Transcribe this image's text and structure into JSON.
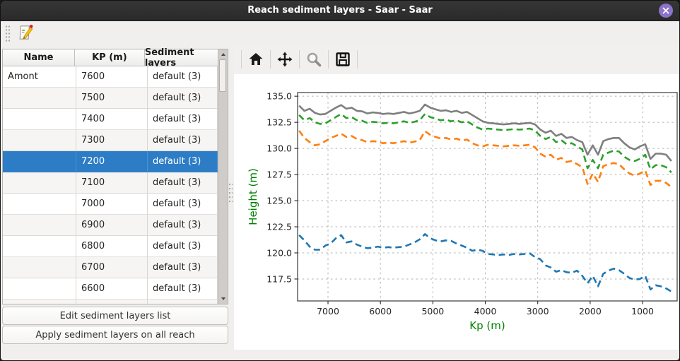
{
  "window": {
    "title": "Reach sediment layers - Saar - Saar"
  },
  "colors": {
    "selection_blue": "#2d7dc6",
    "close_button_purple": "#8b73c9",
    "axis_label_green": "#008000"
  },
  "toolbar": {
    "icons": [
      "edit-sediment-layers"
    ]
  },
  "table": {
    "headers": [
      "Name",
      "KP (m)",
      "Sediment layers"
    ],
    "selected_index": 4,
    "rows": [
      {
        "name": "Amont",
        "kp": "7600",
        "layers": "default (3)"
      },
      {
        "name": "",
        "kp": "7500",
        "layers": "default (3)"
      },
      {
        "name": "",
        "kp": "7400",
        "layers": "default (3)"
      },
      {
        "name": "",
        "kp": "7300",
        "layers": "default (3)"
      },
      {
        "name": "",
        "kp": "7200",
        "layers": "default (3)"
      },
      {
        "name": "",
        "kp": "7100",
        "layers": "default (3)"
      },
      {
        "name": "",
        "kp": "7000",
        "layers": "default (3)"
      },
      {
        "name": "",
        "kp": "6900",
        "layers": "default (3)"
      },
      {
        "name": "",
        "kp": "6800",
        "layers": "default (3)"
      },
      {
        "name": "",
        "kp": "6700",
        "layers": "default (3)"
      },
      {
        "name": "",
        "kp": "6600",
        "layers": "default (3)"
      }
    ]
  },
  "buttons": {
    "edit_label": "Edit sediment layers list",
    "apply_label": "Apply sediment layers on all reach"
  },
  "plot_toolbar": {
    "icons": [
      "home",
      "pan",
      "zoom",
      "save"
    ]
  },
  "chart_data": {
    "type": "line",
    "title": "",
    "xlabel": "Kp (m)",
    "ylabel": "Height (m)",
    "x_axis_inverted": true,
    "grid": true,
    "legend": false,
    "xlim": [
      7580,
      340
    ],
    "ylim": [
      115.4,
      135.35
    ],
    "x_ticks": [
      7000,
      6000,
      5000,
      4000,
      3000,
      2000,
      1000
    ],
    "y_ticks": [
      135.0,
      132.5,
      130.0,
      127.5,
      125.0,
      122.5,
      120.0,
      117.5
    ],
    "x": [
      7550,
      7450,
      7350,
      7250,
      7150,
      7050,
      6950,
      6850,
      6750,
      6650,
      6550,
      6450,
      6350,
      6250,
      6150,
      6050,
      5950,
      5850,
      5750,
      5650,
      5550,
      5450,
      5350,
      5250,
      5150,
      5050,
      4950,
      4850,
      4750,
      4650,
      4550,
      4450,
      4350,
      4250,
      4150,
      4050,
      3950,
      3850,
      3750,
      3650,
      3550,
      3450,
      3350,
      3250,
      3150,
      3050,
      2950,
      2850,
      2750,
      2650,
      2550,
      2450,
      2350,
      2250,
      2150,
      2050,
      1950,
      1850,
      1750,
      1650,
      1550,
      1450,
      1350,
      1250,
      1150,
      1050,
      950,
      850,
      750,
      650,
      550,
      450
    ],
    "series": [
      {
        "name": "top-line-gray",
        "color": "#7f7f7f",
        "style": "solid",
        "values": [
          134.1,
          133.6,
          133.8,
          133.4,
          133.25,
          133.3,
          133.6,
          133.9,
          134.15,
          133.8,
          133.9,
          133.6,
          133.55,
          133.35,
          133.45,
          133.4,
          133.3,
          133.35,
          133.3,
          133.4,
          133.5,
          133.35,
          133.45,
          133.6,
          134.2,
          133.9,
          133.75,
          133.6,
          133.65,
          133.5,
          133.6,
          133.4,
          133.5,
          133.2,
          132.9,
          132.6,
          132.45,
          132.4,
          132.35,
          132.3,
          132.35,
          132.4,
          132.35,
          132.4,
          132.45,
          132.3,
          131.8,
          131.5,
          131.7,
          131.2,
          131.4,
          131.0,
          131.1,
          130.8,
          130.6,
          129.4,
          130.3,
          129.4,
          130.7,
          130.9,
          131.0,
          131.0,
          130.5,
          130.1,
          129.9,
          130.2,
          130.4,
          129.0,
          129.5,
          129.5,
          129.4,
          128.8
        ]
      },
      {
        "name": "line-green",
        "color": "#2ca02c",
        "style": "dashed",
        "values": [
          133.2,
          132.7,
          132.9,
          132.5,
          132.35,
          132.4,
          132.7,
          133.0,
          133.3,
          132.9,
          133.0,
          132.7,
          132.65,
          132.45,
          132.55,
          132.5,
          132.4,
          132.45,
          132.4,
          132.5,
          132.6,
          132.45,
          132.55,
          132.7,
          133.3,
          133.0,
          132.85,
          132.7,
          132.75,
          132.6,
          132.7,
          132.5,
          132.6,
          132.3,
          132.0,
          131.8,
          131.9,
          131.85,
          131.8,
          131.75,
          131.8,
          131.85,
          131.8,
          131.85,
          131.9,
          131.7,
          131.2,
          130.9,
          131.1,
          130.6,
          130.8,
          130.4,
          130.5,
          130.2,
          129.9,
          128.1,
          128.9,
          128.1,
          129.4,
          129.6,
          129.8,
          129.7,
          129.2,
          128.9,
          128.8,
          129.0,
          129.4,
          128.0,
          128.4,
          128.4,
          128.2,
          127.7
        ]
      },
      {
        "name": "line-orange",
        "color": "#ff7f0e",
        "style": "dashed",
        "values": [
          131.7,
          131.0,
          130.6,
          130.3,
          130.4,
          130.7,
          131.0,
          131.2,
          131.4,
          131.1,
          131.2,
          130.9,
          130.8,
          130.6,
          130.7,
          130.65,
          130.5,
          130.55,
          130.5,
          130.6,
          130.7,
          130.55,
          130.65,
          130.8,
          131.65,
          131.3,
          131.1,
          130.95,
          131.0,
          130.85,
          130.95,
          130.75,
          130.85,
          130.5,
          130.3,
          130.2,
          130.35,
          130.3,
          130.25,
          130.2,
          130.25,
          130.3,
          130.25,
          130.3,
          130.35,
          130.1,
          129.5,
          129.2,
          129.4,
          128.9,
          129.1,
          128.7,
          128.8,
          128.5,
          128.2,
          126.6,
          127.6,
          126.8,
          128.3,
          128.5,
          128.6,
          128.5,
          128.0,
          127.6,
          127.4,
          127.6,
          127.9,
          126.5,
          126.9,
          126.9,
          126.7,
          126.3
        ]
      },
      {
        "name": "bottom-line-blue",
        "color": "#1f77b4",
        "style": "dashed",
        "values": [
          121.7,
          121.2,
          120.6,
          120.3,
          120.3,
          120.7,
          120.9,
          121.4,
          121.7,
          121.0,
          121.1,
          120.8,
          120.6,
          120.45,
          120.5,
          120.6,
          120.5,
          120.55,
          120.5,
          120.55,
          120.6,
          120.8,
          121.0,
          121.3,
          121.8,
          121.4,
          121.2,
          121.1,
          121.2,
          121.15,
          120.9,
          120.7,
          120.5,
          120.2,
          120.3,
          120.2,
          119.9,
          119.85,
          119.8,
          119.85,
          119.8,
          119.9,
          119.85,
          119.9,
          119.95,
          119.6,
          119.4,
          118.8,
          118.6,
          118.2,
          118.35,
          118.15,
          118.1,
          118.3,
          117.8,
          117.1,
          117.8,
          116.8,
          118.0,
          118.3,
          118.5,
          118.35,
          118.0,
          117.6,
          117.45,
          117.5,
          117.8,
          116.5,
          116.9,
          116.8,
          116.6,
          116.3
        ]
      }
    ]
  }
}
